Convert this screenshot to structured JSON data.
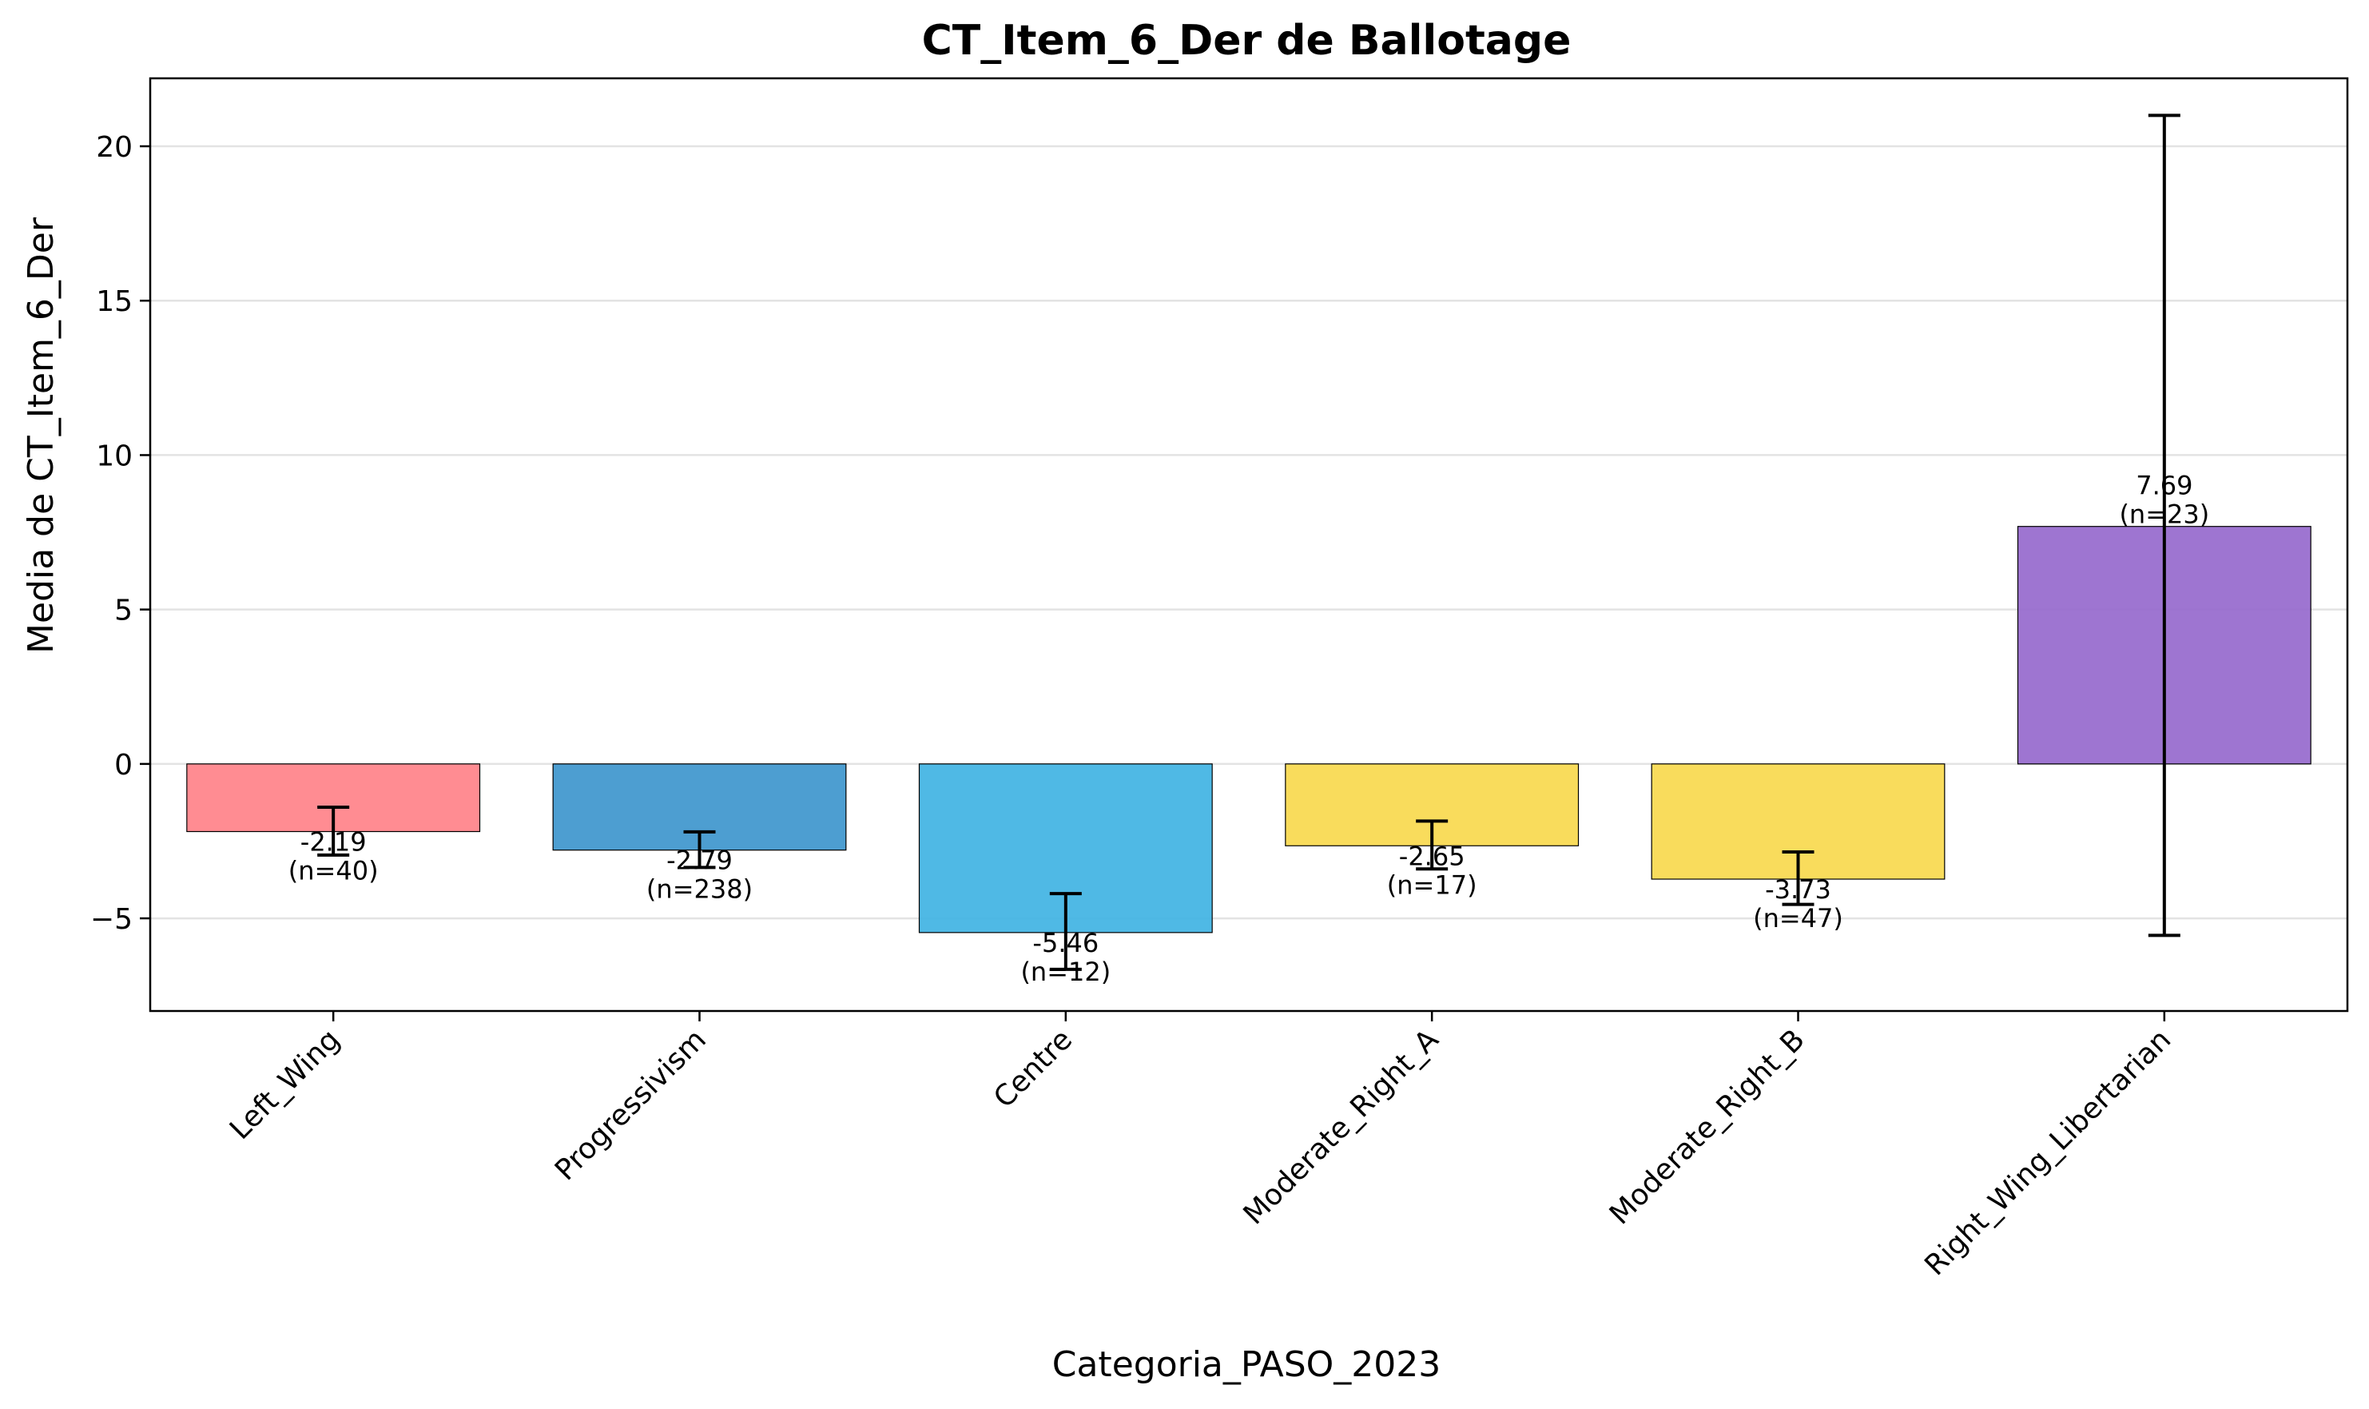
{
  "chart_data": {
    "type": "bar",
    "title": "CT_Item_6_Der de Ballotage",
    "xlabel": "Categoria_PASO_2023",
    "ylabel": "Media de CT_Item_6_Der",
    "categories": [
      "Left_Wing",
      "Progressivism",
      "Centre",
      "Moderate_Right_A",
      "Moderate_Right_B",
      "Right_Wing_Libertarian"
    ],
    "values": [
      -2.19,
      -2.79,
      -5.46,
      -2.65,
      -3.73,
      7.69
    ],
    "error_low": [
      -2.95,
      -3.35,
      -6.65,
      -3.4,
      -4.55,
      -5.55
    ],
    "error_high": [
      -1.4,
      -2.2,
      -4.2,
      -1.85,
      -2.85,
      21.0
    ],
    "value_labels": [
      "-2.19",
      "-2.79",
      "-5.46",
      "-2.65",
      "-3.73",
      "7.69"
    ],
    "n_labels": [
      "(n=40)",
      "(n=238)",
      "(n=12)",
      "(n=17)",
      "(n=47)",
      "(n=23)"
    ],
    "colors": [
      "#FF7F86",
      "#3A93CC",
      "#3CB1E2",
      "#F8D84A",
      "#F8D84A",
      "#9466CC"
    ],
    "ylim": [
      -8,
      22.2
    ],
    "yticks": [
      -5,
      0,
      5,
      10,
      15,
      20
    ],
    "ytick_labels": [
      "−5",
      "0",
      "5",
      "10",
      "15",
      "20"
    ],
    "grid": "y",
    "legend": "none"
  }
}
